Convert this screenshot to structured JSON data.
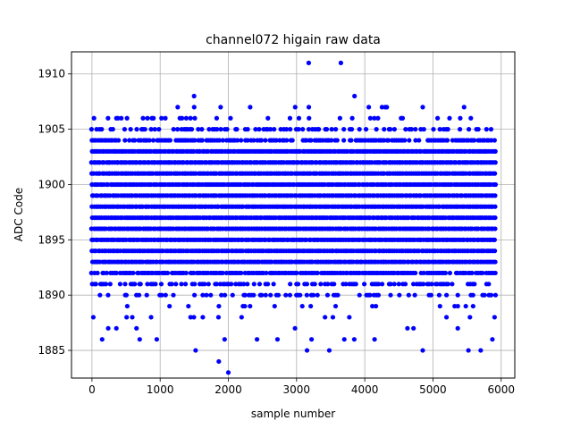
{
  "chart_data": {
    "type": "scatter",
    "title": "channel072 higain raw data",
    "xlabel": "sample number",
    "ylabel": "ADC Code",
    "xlim": [
      -300,
      6200
    ],
    "ylim": [
      1882.5,
      1912
    ],
    "xticks": [
      0,
      1000,
      2000,
      3000,
      4000,
      5000,
      6000
    ],
    "yticks": [
      1885,
      1890,
      1895,
      1900,
      1905,
      1910
    ],
    "grid": true,
    "marker_color": "#0000ff",
    "series": [
      {
        "n_samples": 5925,
        "sample_step": 30,
        "dense_band": [
          1892,
          1904
        ],
        "levels": [
          1883,
          1884,
          1885,
          1886,
          1887,
          1888,
          1889,
          1890,
          1891,
          1892,
          1893,
          1894,
          1895,
          1896,
          1897,
          1898,
          1899,
          1900,
          1901,
          1902,
          1903,
          1904,
          1905,
          1906,
          1907,
          1908,
          1911
        ],
        "occupancy": [
          0.001,
          0.002,
          0.01,
          0.03,
          0.05,
          0.08,
          0.12,
          0.35,
          0.55,
          0.9,
          1,
          1,
          1,
          1,
          1,
          1,
          1,
          1,
          1,
          1,
          1,
          0.8,
          0.4,
          0.12,
          0.03,
          0.006,
          0.002
        ],
        "notable_points": [
          {
            "x": 2000,
            "y": 1883
          },
          {
            "x": 1860,
            "y": 1884
          },
          {
            "x": 1520,
            "y": 1885
          },
          {
            "x": 3480,
            "y": 1885
          },
          {
            "x": 4850,
            "y": 1885
          },
          {
            "x": 5520,
            "y": 1885
          },
          {
            "x": 5700,
            "y": 1885
          },
          {
            "x": 3650,
            "y": 1911
          },
          {
            "x": 3850,
            "y": 1908
          },
          {
            "x": 2320,
            "y": 1907
          },
          {
            "x": 2980,
            "y": 1907
          },
          {
            "x": 3180,
            "y": 1907
          },
          {
            "x": 4300,
            "y": 1907
          },
          {
            "x": 4850,
            "y": 1907
          },
          {
            "x": 30,
            "y": 1906
          },
          {
            "x": 430,
            "y": 1906
          },
          {
            "x": 880,
            "y": 1906
          },
          {
            "x": 1320,
            "y": 1906
          },
          {
            "x": 5400,
            "y": 1906
          },
          {
            "x": 20,
            "y": 1888
          },
          {
            "x": 700,
            "y": 1886
          },
          {
            "x": 950,
            "y": 1886
          },
          {
            "x": 2420,
            "y": 1886
          },
          {
            "x": 2720,
            "y": 1886
          },
          {
            "x": 3220,
            "y": 1886
          },
          {
            "x": 3700,
            "y": 1886
          }
        ]
      }
    ]
  }
}
